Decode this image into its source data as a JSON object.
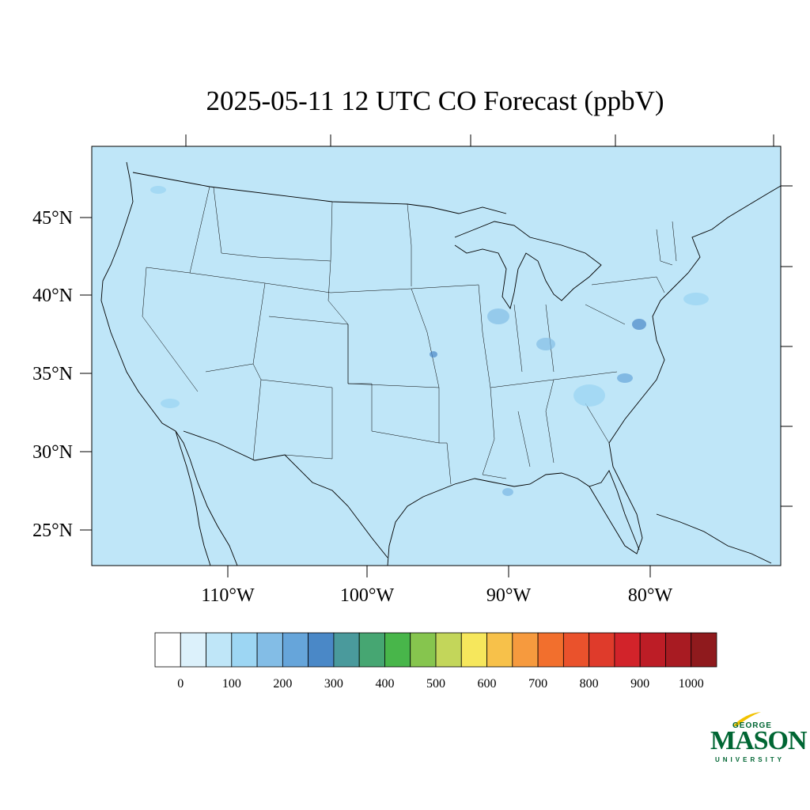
{
  "title": "2025-05-11 12 UTC CO Forecast (ppbV)",
  "map": {
    "background_color": "#bfe6f8",
    "lat_labels": [
      "45°N",
      "40°N",
      "35°N",
      "30°N",
      "25°N"
    ],
    "lon_labels": [
      "110°W",
      "100°W",
      "90°W",
      "80°W"
    ]
  },
  "colorbar": {
    "colors": [
      "#ffffff",
      "#dcf1fb",
      "#bfe6f8",
      "#9dd6f3",
      "#83bde6",
      "#66a5da",
      "#4a88c7",
      "#4a9a9c",
      "#46a672",
      "#48b64a",
      "#86c54e",
      "#c3d65a",
      "#f6e75c",
      "#f7c14a",
      "#f69a3e",
      "#f26f2d",
      "#ea522c",
      "#df3b2b",
      "#d2232a",
      "#bd1d26",
      "#a81b22",
      "#8f1a1d"
    ],
    "labels": [
      "0",
      "100",
      "200",
      "300",
      "400",
      "500",
      "600",
      "700",
      "800",
      "900",
      "1000"
    ]
  },
  "logo": {
    "line1": "GEORGE",
    "line2": "MASON",
    "line3": "UNIVERSITY",
    "color": "#006633",
    "accent": "#f2c200"
  }
}
